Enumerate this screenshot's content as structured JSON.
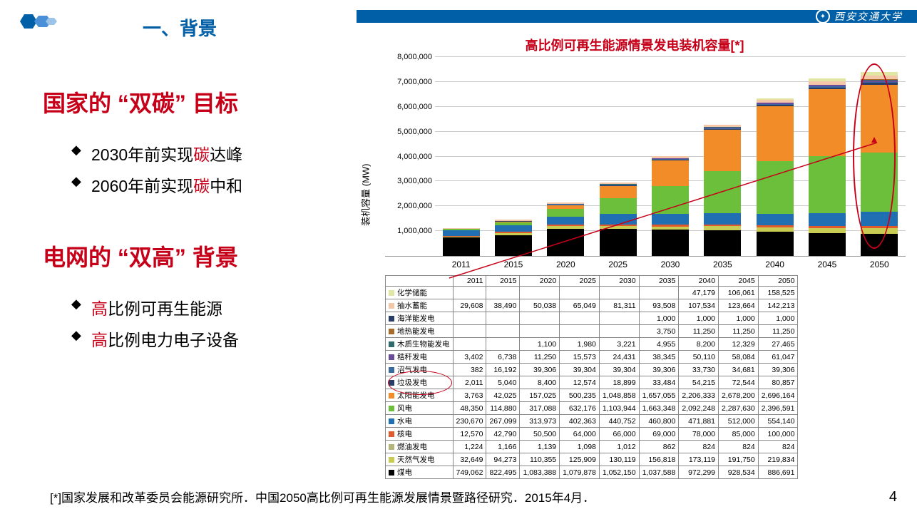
{
  "header": {
    "section_label": "一、背景",
    "university": "西安交通大学"
  },
  "left": {
    "headline1_pre": "国家的 “",
    "headline1_key": "双碳",
    "headline1_post": "” 目标",
    "bullets1": [
      {
        "pre": "2030年前实现",
        "key": "碳",
        "post": "达峰"
      },
      {
        "pre": "2060年前实现",
        "key": "碳",
        "post": "中和"
      }
    ],
    "headline2_pre": "电网的 “",
    "headline2_key": "双高",
    "headline2_post": "” 背景",
    "bullets2": [
      {
        "pre": "",
        "key": "高",
        "post": "比例可再生能源"
      },
      {
        "pre": "",
        "key": "高",
        "post": "比例电力电子设备"
      }
    ]
  },
  "chart": {
    "title": "高比例可再生能源情景发电装机容量[*]",
    "ylabel": "装机容量 (MW)",
    "ymax": 8000000,
    "y_ticks": [
      "8,000,000",
      "7,000,000",
      "6,000,000",
      "5,000,000",
      "4,000,000",
      "3,000,000",
      "2,000,000",
      "1,000,000"
    ],
    "years": [
      "2011",
      "2015",
      "2020",
      "2025",
      "2030",
      "2035",
      "2040",
      "2045",
      "2050"
    ],
    "series": [
      {
        "name": "化学储能",
        "color": "#e2e6a3",
        "vals": [
          null,
          null,
          null,
          null,
          null,
          null,
          47179,
          106061,
          158525
        ]
      },
      {
        "name": "抽水蓄能",
        "color": "#f4c7a8",
        "vals": [
          29608,
          38490,
          50038,
          65049,
          81311,
          93508,
          107534,
          123664,
          142213
        ]
      },
      {
        "name": "海洋能发电",
        "color": "#2a3d66",
        "vals": [
          null,
          null,
          null,
          null,
          null,
          1000,
          1000,
          1000,
          1000
        ]
      },
      {
        "name": "地热能发电",
        "color": "#a86b2a",
        "vals": [
          null,
          null,
          null,
          null,
          null,
          3750,
          11250,
          11250,
          11250
        ]
      },
      {
        "name": "木质生物能发电",
        "color": "#2f6b6b",
        "vals": [
          null,
          null,
          1100,
          1980,
          3221,
          4955,
          8200,
          12329,
          27465
        ]
      },
      {
        "name": "秸秆发电",
        "color": "#6a4c9c",
        "vals": [
          3402,
          6738,
          11250,
          15573,
          24431,
          38345,
          50110,
          58084,
          61047
        ]
      },
      {
        "name": "沼气发电",
        "color": "#3b6aa0",
        "vals": [
          382,
          16192,
          39306,
          39304,
          39304,
          39306,
          33730,
          34681,
          39306
        ]
      },
      {
        "name": "垃圾发电",
        "color": "#2a3d66",
        "vals": [
          2011,
          5040,
          8400,
          12574,
          18899,
          33484,
          54215,
          72544,
          80857
        ]
      },
      {
        "name": "太阳能发电",
        "color": "#f28c28",
        "vals": [
          3763,
          42025,
          157025,
          500235,
          1048858,
          1657055,
          2206333,
          2678200,
          2696164
        ]
      },
      {
        "name": "风电",
        "color": "#6bbf3a",
        "vals": [
          48350,
          114880,
          317088,
          632176,
          1103944,
          1663348,
          2092248,
          2287630,
          2396591
        ]
      },
      {
        "name": "水电",
        "color": "#1f6fb2",
        "vals": [
          230670,
          267099,
          313973,
          402363,
          440752,
          460800,
          471881,
          512000,
          554140
        ]
      },
      {
        "name": "核电",
        "color": "#e05a2b",
        "vals": [
          12570,
          42790,
          50500,
          64000,
          66000,
          69000,
          78000,
          85000,
          100000
        ]
      },
      {
        "name": "燃油发电",
        "color": "#b5b57a",
        "vals": [
          1224,
          1166,
          1139,
          1098,
          1012,
          862,
          824,
          824,
          824
        ]
      },
      {
        "name": "天然气发电",
        "color": "#c9cc52",
        "vals": [
          32649,
          94273,
          110355,
          125909,
          130119,
          156818,
          173119,
          191750,
          219834
        ]
      },
      {
        "name": "煤电",
        "color": "#000000",
        "vals": [
          749062,
          822495,
          1083388,
          1079878,
          1052150,
          1037588,
          972299,
          928534,
          886691
        ]
      }
    ],
    "highlight_rows": [
      "太阳能发电",
      "风电"
    ]
  },
  "footnote": "[*]国家发展和改革委员会能源研究所．中国2050高比例可再生能源发展情景暨路径研究．2015年4月．",
  "page_number": "4"
}
